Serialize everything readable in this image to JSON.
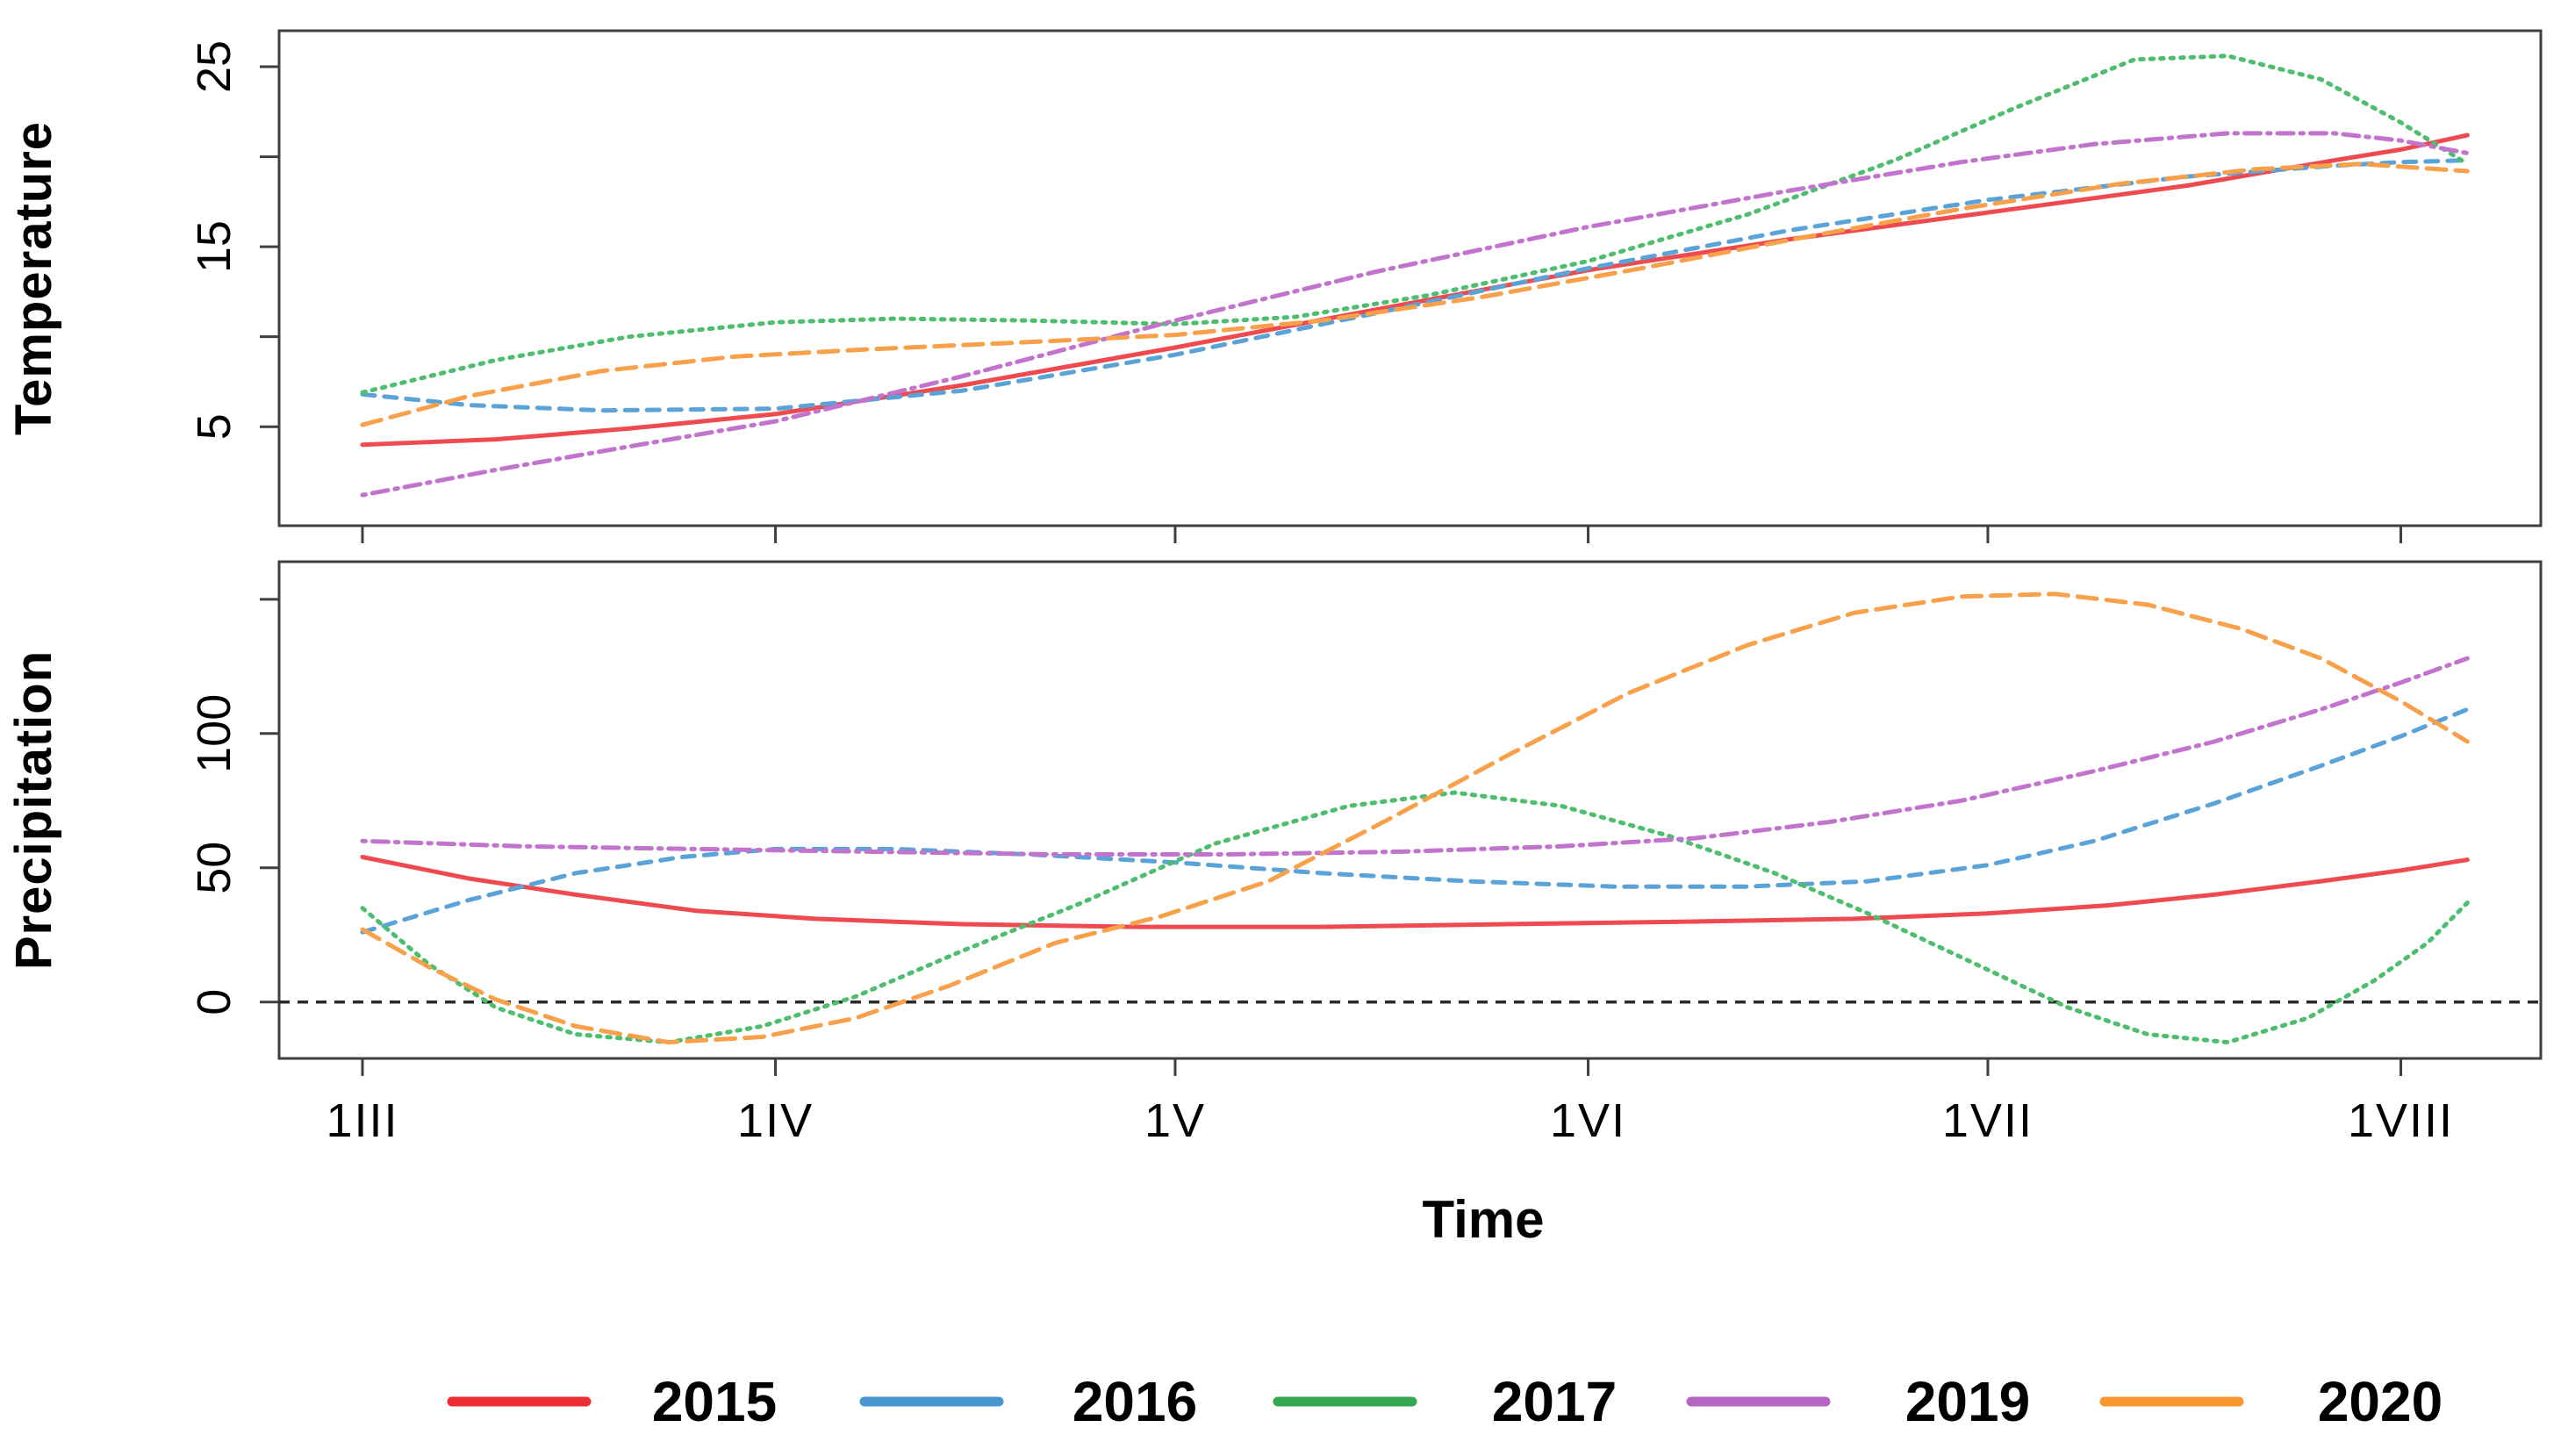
{
  "figure": {
    "background": "#ffffff",
    "axis_color": "#3f3f3f",
    "text_color": "#000000",
    "xlabel": "Time",
    "x_tick_labels": [
      "1III",
      "1IV",
      "1V",
      "1VI",
      "1VII",
      "1VIII"
    ],
    "x_tick_days": [
      0,
      31,
      61,
      92,
      122,
      153
    ],
    "x_unit": "days since 1 March (Roman numeral month starts)"
  },
  "legend": {
    "position": "bottom",
    "items": [
      {
        "label": "2015",
        "color": "#ed2c33",
        "style": "solid"
      },
      {
        "label": "2016",
        "color": "#4796d2",
        "style": "solid"
      },
      {
        "label": "2017",
        "color": "#35a853",
        "style": "solid"
      },
      {
        "label": "2019",
        "color": "#b565c4",
        "style": "solid"
      },
      {
        "label": "2020",
        "color": "#f8962f",
        "style": "solid"
      }
    ]
  },
  "chart_data": [
    {
      "type": "line",
      "panel": "top",
      "ylabel": "Temperature",
      "xlim": [
        0,
        158
      ],
      "ylim": [
        -0.5,
        27
      ],
      "yticks": [
        5,
        10,
        15,
        20,
        25
      ],
      "ytick_labels_shown": [
        "5",
        "15",
        "25"
      ],
      "grid": false,
      "series": [
        {
          "name": "2015",
          "color": "#ee4a50",
          "dash": "solid",
          "points": [
            [
              0,
              4.0
            ],
            [
              10,
              4.3
            ],
            [
              20,
              4.9
            ],
            [
              31,
              5.7
            ],
            [
              45,
              7.3
            ],
            [
              61,
              9.4
            ],
            [
              76,
              11.5
            ],
            [
              92,
              13.7
            ],
            [
              107,
              15.4
            ],
            [
              122,
              16.9
            ],
            [
              137,
              18.4
            ],
            [
              148,
              19.8
            ],
            [
              153,
              20.4
            ],
            [
              158,
              21.2
            ]
          ]
        },
        {
          "name": "2016",
          "color": "#5aa3d8",
          "dash": "dashed",
          "points": [
            [
              0,
              6.8
            ],
            [
              8,
              6.2
            ],
            [
              18,
              5.9
            ],
            [
              31,
              6.0
            ],
            [
              45,
              7.0
            ],
            [
              61,
              9.0
            ],
            [
              76,
              11.3
            ],
            [
              92,
              13.8
            ],
            [
              107,
              15.9
            ],
            [
              122,
              17.6
            ],
            [
              137,
              18.9
            ],
            [
              148,
              19.5
            ],
            [
              153,
              19.7
            ],
            [
              158,
              19.8
            ]
          ]
        },
        {
          "name": "2017",
          "color": "#4dbd6e",
          "dash": "dotted",
          "points": [
            [
              0,
              6.9
            ],
            [
              10,
              8.7
            ],
            [
              20,
              10.0
            ],
            [
              31,
              10.8
            ],
            [
              40,
              11.0
            ],
            [
              50,
              10.9
            ],
            [
              61,
              10.7
            ],
            [
              70,
              11.1
            ],
            [
              80,
              12.3
            ],
            [
              92,
              14.2
            ],
            [
              104,
              16.8
            ],
            [
              115,
              19.8
            ],
            [
              124,
              22.7
            ],
            [
              133,
              25.4
            ],
            [
              140,
              25.6
            ],
            [
              147,
              24.3
            ],
            [
              153,
              21.9
            ],
            [
              158,
              19.6
            ]
          ]
        },
        {
          "name": "2019",
          "color": "#c273cd",
          "dash": "dotdash",
          "points": [
            [
              0,
              1.2
            ],
            [
              10,
              2.6
            ],
            [
              20,
              3.9
            ],
            [
              31,
              5.3
            ],
            [
              45,
              7.8
            ],
            [
              61,
              10.9
            ],
            [
              76,
              13.6
            ],
            [
              92,
              16.1
            ],
            [
              107,
              18.1
            ],
            [
              120,
              19.7
            ],
            [
              130,
              20.7
            ],
            [
              140,
              21.3
            ],
            [
              148,
              21.3
            ],
            [
              153,
              20.9
            ],
            [
              158,
              20.2
            ]
          ]
        },
        {
          "name": "2020",
          "color": "#f9a04b",
          "dash": "longdash",
          "points": [
            [
              0,
              5.1
            ],
            [
              8,
              6.7
            ],
            [
              18,
              8.1
            ],
            [
              28,
              8.9
            ],
            [
              38,
              9.3
            ],
            [
              50,
              9.7
            ],
            [
              61,
              10.1
            ],
            [
              72,
              10.9
            ],
            [
              84,
              12.2
            ],
            [
              96,
              13.8
            ],
            [
              108,
              15.5
            ],
            [
              120,
              17.1
            ],
            [
              132,
              18.5
            ],
            [
              142,
              19.3
            ],
            [
              150,
              19.6
            ],
            [
              158,
              19.2
            ]
          ]
        }
      ]
    },
    {
      "type": "line",
      "panel": "bottom",
      "ylabel": "Precipitation",
      "xlim": [
        0,
        158
      ],
      "ylim": [
        -21,
        164
      ],
      "yticks": [
        0,
        50,
        100,
        150
      ],
      "ytick_labels_shown": [
        "0",
        "50",
        "100"
      ],
      "grid": false,
      "reference_line": {
        "y": 0,
        "color": "#2a2a2a",
        "dash": "dashed"
      },
      "series": [
        {
          "name": "2015",
          "color": "#ee4a50",
          "dash": "solid",
          "points": [
            [
              0,
              54
            ],
            [
              8,
              46
            ],
            [
              16,
              40
            ],
            [
              25,
              34
            ],
            [
              34,
              31
            ],
            [
              45,
              29
            ],
            [
              58,
              28
            ],
            [
              72,
              28
            ],
            [
              86,
              29
            ],
            [
              100,
              30
            ],
            [
              112,
              31
            ],
            [
              122,
              33
            ],
            [
              131,
              36
            ],
            [
              139,
              40
            ],
            [
              147,
              45
            ],
            [
              153,
              49
            ],
            [
              158,
              53
            ]
          ]
        },
        {
          "name": "2016",
          "color": "#5aa3d8",
          "dash": "dashed",
          "points": [
            [
              0,
              26
            ],
            [
              8,
              38
            ],
            [
              16,
              48
            ],
            [
              24,
              54
            ],
            [
              31,
              57
            ],
            [
              40,
              57
            ],
            [
              50,
              55
            ],
            [
              61,
              52
            ],
            [
              72,
              48
            ],
            [
              83,
              45
            ],
            [
              94,
              43
            ],
            [
              104,
              43
            ],
            [
              113,
              45
            ],
            [
              122,
              51
            ],
            [
              130,
              60
            ],
            [
              139,
              74
            ],
            [
              147,
              88
            ],
            [
              153,
              99
            ],
            [
              158,
              109
            ]
          ]
        },
        {
          "name": "2017",
          "color": "#4dbd6e",
          "dash": "dotted",
          "points": [
            [
              0,
              35
            ],
            [
              5,
              14
            ],
            [
              10,
              -2
            ],
            [
              16,
              -12
            ],
            [
              23,
              -15
            ],
            [
              30,
              -9
            ],
            [
              37,
              2
            ],
            [
              45,
              19
            ],
            [
              54,
              37
            ],
            [
              64,
              59
            ],
            [
              74,
              73
            ],
            [
              82,
              78
            ],
            [
              90,
              73
            ],
            [
              98,
              62
            ],
            [
              106,
              48
            ],
            [
              113,
              33
            ],
            [
              122,
              12
            ],
            [
              128,
              -2
            ],
            [
              134,
              -12
            ],
            [
              140,
              -15
            ],
            [
              146,
              -6
            ],
            [
              151,
              8
            ],
            [
              155,
              22
            ],
            [
              158,
              37
            ]
          ]
        },
        {
          "name": "2019",
          "color": "#c273cd",
          "dash": "dotdash",
          "points": [
            [
              0,
              60
            ],
            [
              12,
              58
            ],
            [
              25,
              57
            ],
            [
              38,
              56
            ],
            [
              52,
              55
            ],
            [
              65,
              55
            ],
            [
              78,
              56
            ],
            [
              90,
              58
            ],
            [
              100,
              61
            ],
            [
              110,
              67
            ],
            [
              120,
              75
            ],
            [
              130,
              86
            ],
            [
              139,
              97
            ],
            [
              147,
              109
            ],
            [
              153,
              119
            ],
            [
              158,
              128
            ]
          ]
        },
        {
          "name": "2020",
          "color": "#f9a04b",
          "dash": "longdash",
          "points": [
            [
              0,
              27
            ],
            [
              5,
              13
            ],
            [
              10,
              1
            ],
            [
              16,
              -9
            ],
            [
              23,
              -15
            ],
            [
              30,
              -13
            ],
            [
              37,
              -6
            ],
            [
              44,
              6
            ],
            [
              52,
              22
            ],
            [
              60,
              32
            ],
            [
              68,
              45
            ],
            [
              77,
              68
            ],
            [
              86,
              92
            ],
            [
              95,
              115
            ],
            [
              104,
              133
            ],
            [
              112,
              145
            ],
            [
              120,
              151
            ],
            [
              127,
              152
            ],
            [
              134,
              148
            ],
            [
              141,
              139
            ],
            [
              147,
              128
            ],
            [
              153,
              112
            ],
            [
              158,
              97
            ]
          ]
        }
      ]
    }
  ]
}
